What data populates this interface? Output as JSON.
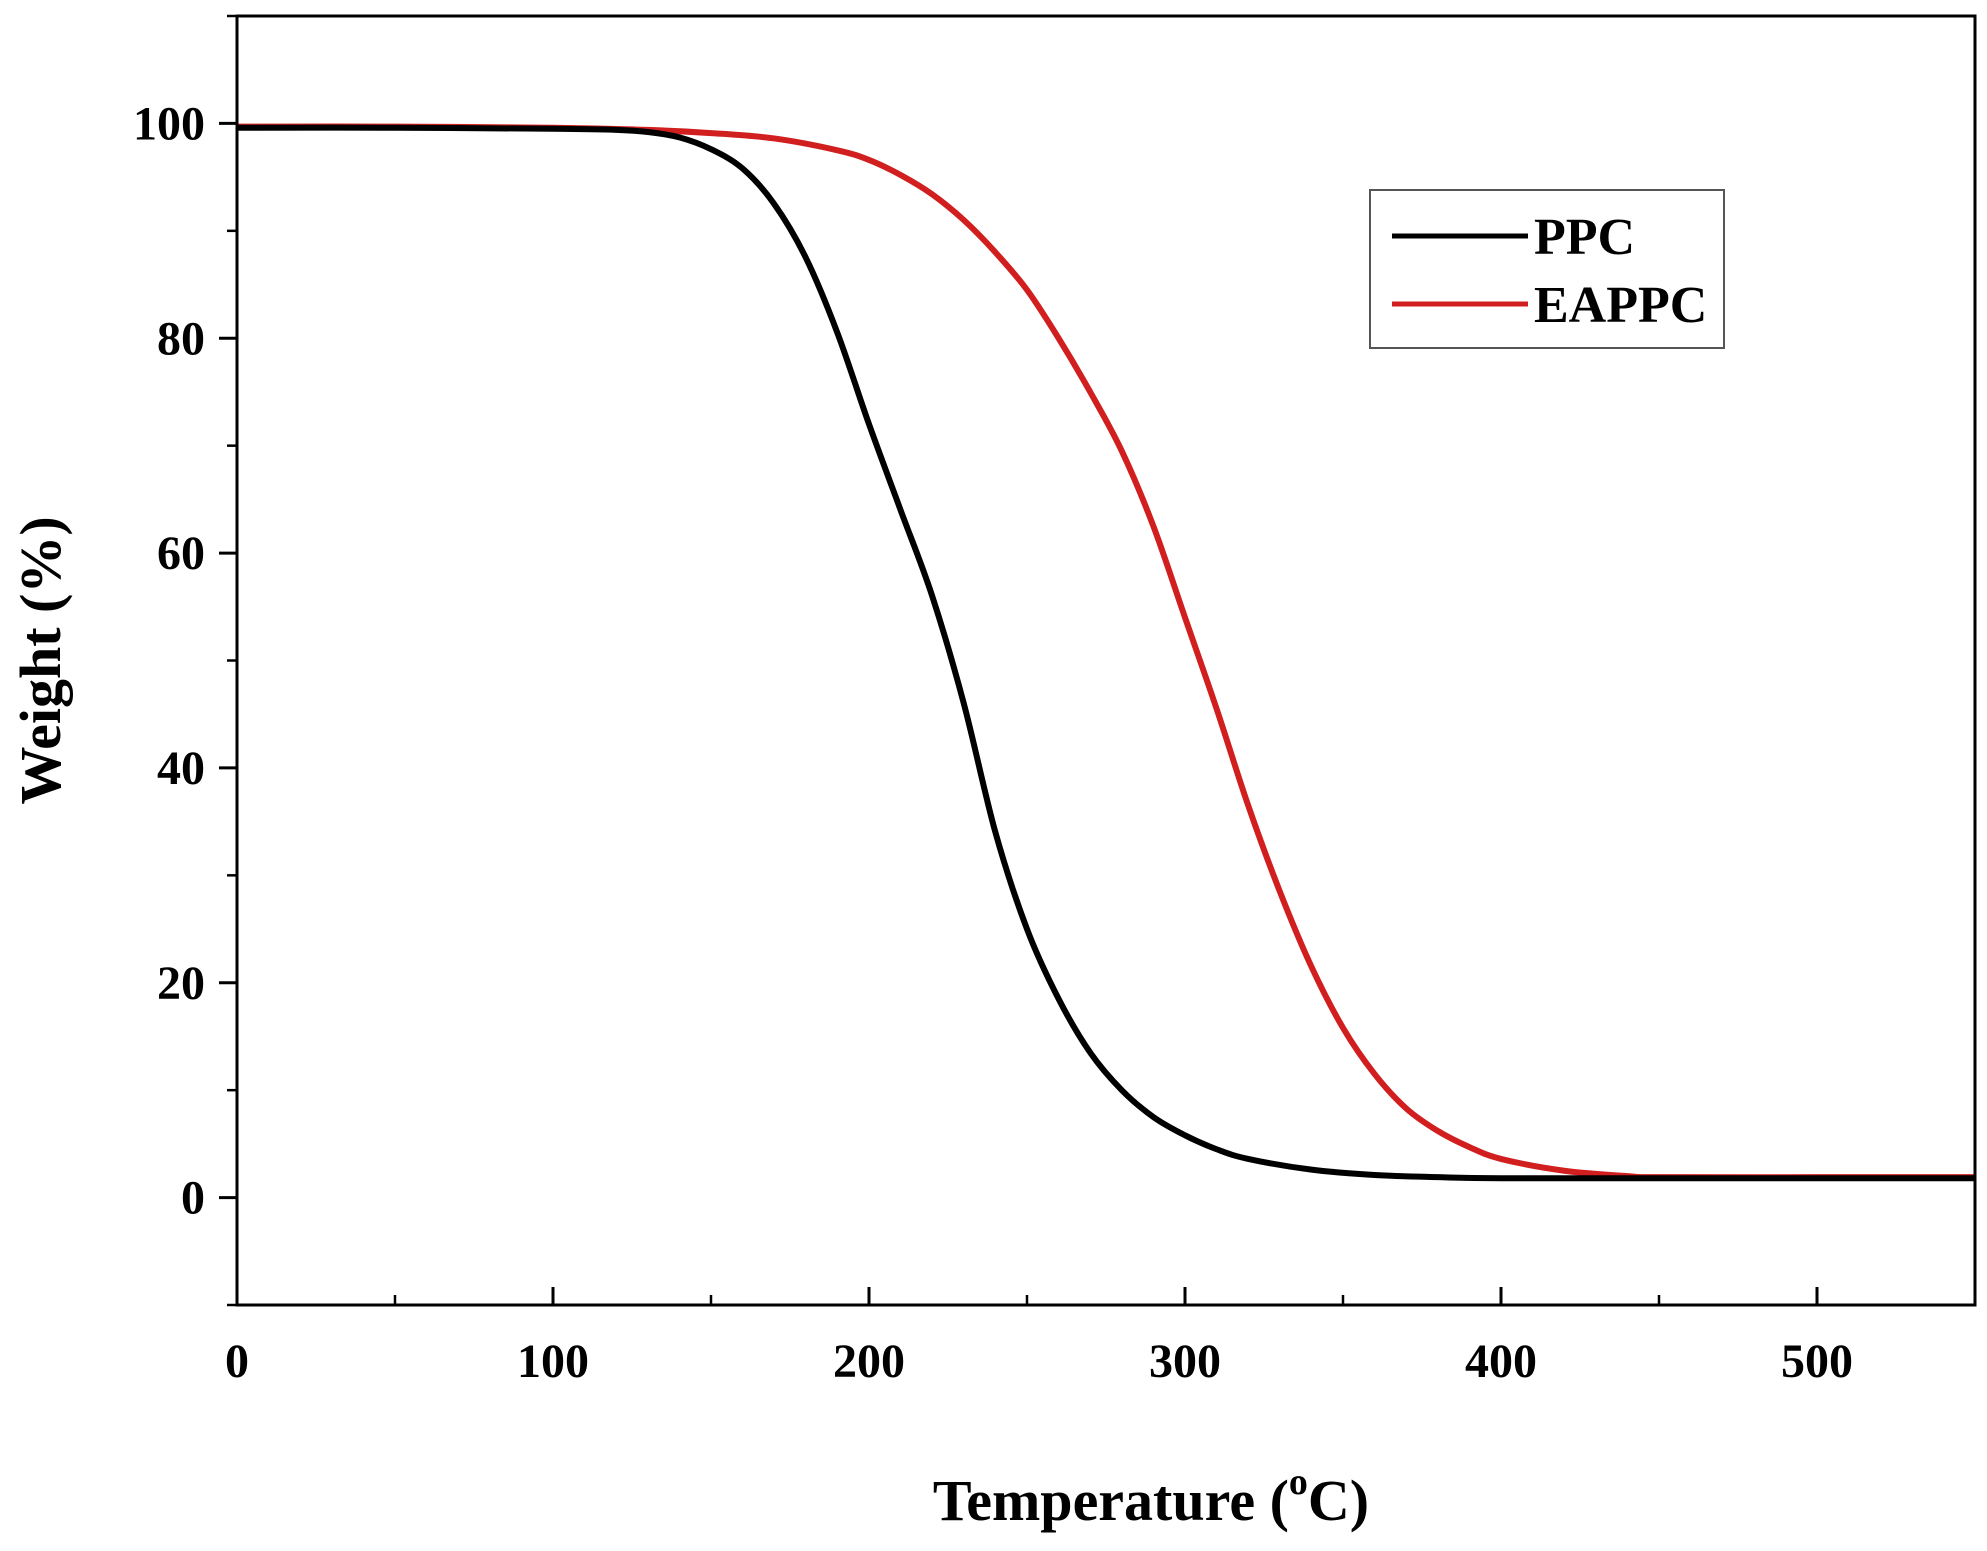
{
  "chart_data": {
    "type": "line",
    "title": "",
    "xlabel": "Temperature",
    "xlabel_unit_sup": "o",
    "xlabel_unit_main": "C",
    "ylabel": "Weight (%)",
    "xlim": [
      0,
      550
    ],
    "ylim": [
      -10,
      110
    ],
    "xticks": [
      0,
      100,
      200,
      300,
      400,
      500
    ],
    "yticks": [
      0,
      20,
      40,
      60,
      80,
      100
    ],
    "xtick_labels": [
      "0",
      "100",
      "200",
      "300",
      "400",
      "500"
    ],
    "ytick_labels": [
      "0",
      "20",
      "40",
      "60",
      "80",
      "100"
    ],
    "grid": false,
    "legend_position": "top-right",
    "series": [
      {
        "name": "PPC",
        "color": "#000000",
        "x": [
          0,
          50,
          100,
          120,
          130,
          140,
          150,
          160,
          170,
          180,
          190,
          200,
          210,
          220,
          230,
          240,
          250,
          260,
          270,
          280,
          290,
          300,
          310,
          320,
          340,
          360,
          380,
          400,
          450,
          500,
          550
        ],
        "y": [
          99.6,
          99.6,
          99.5,
          99.4,
          99.2,
          98.7,
          97.6,
          95.8,
          92.5,
          87.5,
          80.5,
          72,
          64,
          56,
          46,
          34,
          25,
          18.5,
          13.5,
          10,
          7.5,
          5.8,
          4.5,
          3.6,
          2.6,
          2.1,
          1.9,
          1.8,
          1.8,
          1.8,
          1.8
        ]
      },
      {
        "name": "EAPPC",
        "color": "#d11f1f",
        "x": [
          0,
          50,
          100,
          130,
          150,
          170,
          190,
          200,
          210,
          220,
          230,
          240,
          250,
          260,
          270,
          280,
          290,
          300,
          310,
          320,
          330,
          340,
          350,
          360,
          370,
          380,
          390,
          400,
          420,
          440,
          450,
          500,
          550
        ],
        "y": [
          99.7,
          99.7,
          99.6,
          99.4,
          99.1,
          98.6,
          97.5,
          96.6,
          95.2,
          93.4,
          91,
          88,
          84.5,
          80,
          75,
          69.5,
          62.5,
          54,
          45.5,
          36.5,
          28.5,
          21.5,
          15.8,
          11.5,
          8.3,
          6.2,
          4.7,
          3.6,
          2.5,
          2,
          1.9,
          1.9,
          1.9
        ]
      }
    ]
  }
}
